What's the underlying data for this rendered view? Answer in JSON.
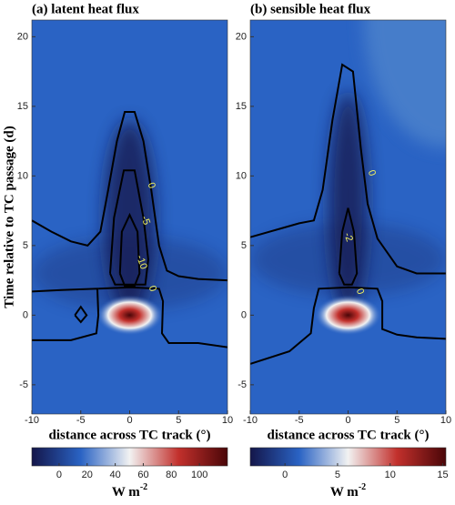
{
  "chart_data": [
    {
      "type": "heatmap",
      "title": "(a) latent heat flux",
      "xlabel": "distance across TC track (°)",
      "ylabel": "Time relative to TC passage (d)",
      "xlim": [
        -10,
        10
      ],
      "xticks": [
        -10,
        -5,
        0,
        5,
        10
      ],
      "ylim": [
        -7.1,
        21.2
      ],
      "yticks": [
        -5,
        0,
        5,
        10,
        15,
        20
      ],
      "clim": [
        -19.4,
        120
      ],
      "cticks": [
        0,
        20,
        40,
        60,
        80,
        100
      ],
      "cbar_label": "W m",
      "cbar_label_sup": "-2",
      "colormap": [
        "#14164a",
        "#2a63c4",
        "#f2f2f2",
        "#c2302c",
        "#4a0608"
      ],
      "contour_color": "#000000",
      "contour_label_color": "#f0f060",
      "contours": [
        {
          "level": 0,
          "x": [
            -10,
            -8,
            -6,
            -4.3,
            -3,
            -2.2,
            -1.3,
            -0.5,
            0.5,
            1.4,
            2.2,
            3,
            3.8,
            5,
            7,
            10,
            null,
            -10,
            -7,
            -3.3,
            -3.2,
            -3.4,
            -6,
            -10,
            null,
            -3.2,
            0,
            3,
            3.4,
            3.3,
            4,
            7,
            10,
            null,
            -5.6,
            -5,
            -4.4,
            -5,
            -5.6
          ],
          "y": [
            6.8,
            6,
            5.3,
            5,
            6,
            9,
            12.5,
            14.6,
            14.6,
            12.5,
            9,
            5,
            3.2,
            2.8,
            2.6,
            2.5,
            null,
            1.7,
            1.8,
            1.9,
            0,
            -1.3,
            -1.8,
            -1.8,
            null,
            1.9,
            2,
            1.9,
            1,
            -1.3,
            -2,
            -2,
            -2.3,
            null,
            0,
            0.6,
            0,
            -0.5,
            0
          ],
          "label_at": [
            [
              2.2,
              9.3
            ],
            [
              2.3,
              1.9
            ]
          ]
        },
        {
          "level": -5,
          "x": [
            -2,
            -1.6,
            -0.6,
            0.5,
            1.4,
            1.9,
            1.6,
            -1.5,
            -2
          ],
          "y": [
            3,
            7,
            10.4,
            10.4,
            7,
            4,
            2.2,
            2.2,
            3
          ],
          "label_at": [
            [
              1.6,
              6.8
            ]
          ]
        },
        {
          "level": -10,
          "x": [
            -1,
            -0.8,
            0,
            0.8,
            1,
            0.5,
            -0.5,
            -1
          ],
          "y": [
            3,
            6,
            7.2,
            6,
            3,
            2.1,
            2.1,
            3
          ],
          "label_at": [
            [
              1.2,
              3.8
            ]
          ]
        }
      ]
    },
    {
      "type": "heatmap",
      "title": "(b) sensible heat flux",
      "xlabel": "distance across TC track (°)",
      "xlim": [
        -10,
        10
      ],
      "xticks": [
        -10,
        -5,
        0,
        5,
        10
      ],
      "ylim": [
        -7.1,
        21.2
      ],
      "yticks": [
        -5,
        0,
        5,
        10,
        15,
        20
      ],
      "clim": [
        -3.3,
        15.3
      ],
      "cticks": [
        0,
        5,
        10,
        15
      ],
      "cbar_label": "W m",
      "cbar_label_sup": "-2",
      "colormap": [
        "#14164a",
        "#2a63c4",
        "#f2f2f2",
        "#c2302c",
        "#4a0608"
      ],
      "contour_color": "#000000",
      "contour_label_color": "#f0f060",
      "contours": [
        {
          "level": 0,
          "x": [
            -10,
            -7,
            -5,
            -3.5,
            -2.6,
            -1.6,
            -0.6,
            0.5,
            1.3,
            2,
            3,
            5,
            7,
            10,
            null,
            -10,
            -6,
            -3.8,
            -3.5,
            -3,
            0,
            3,
            3.5,
            3.5,
            5,
            7,
            10
          ],
          "y": [
            5.6,
            6.2,
            6.6,
            6.8,
            9,
            14,
            18,
            17.5,
            12,
            8,
            5.5,
            3.5,
            3,
            3,
            null,
            -3.5,
            -2.6,
            -1.3,
            0.5,
            1.9,
            2,
            1.9,
            1,
            -1,
            -1.4,
            -1.6,
            -1.7
          ],
          "label_at": [
            [
              2.4,
              10.2
            ],
            [
              1.2,
              1.7
            ]
          ]
        },
        {
          "level": -2,
          "x": [
            -0.9,
            -0.6,
            0,
            0.6,
            0.9,
            0.4,
            -0.4,
            -0.9
          ],
          "y": [
            3,
            6,
            7.7,
            6,
            3,
            2.2,
            2.2,
            3
          ],
          "label_at": [
            [
              0,
              5.6
            ]
          ]
        }
      ]
    }
  ]
}
